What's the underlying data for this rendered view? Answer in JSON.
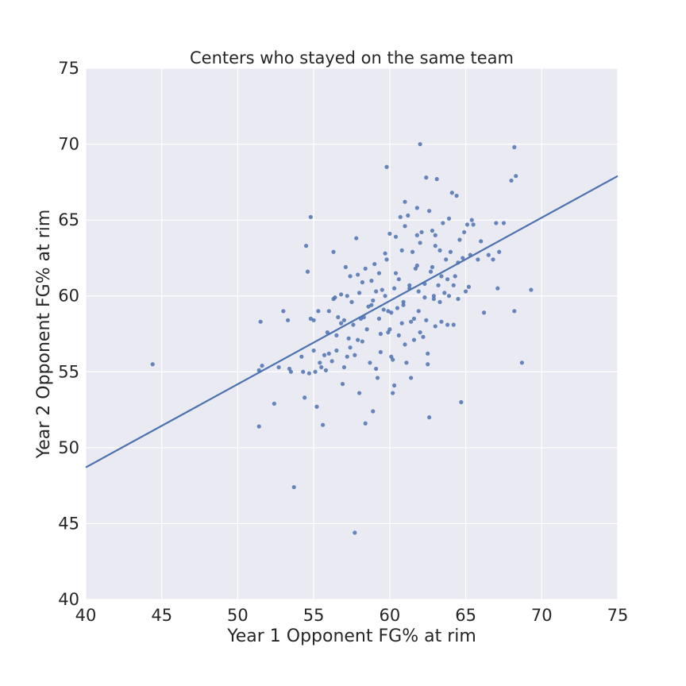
{
  "chart_data": {
    "type": "scatter",
    "title": "Centers who stayed on the same team",
    "xlabel": "Year 1 Opponent FG% at rim",
    "ylabel": "Year 2 Opponent FG% at rim",
    "xlim": [
      40,
      75
    ],
    "ylim": [
      40,
      75
    ],
    "xticks": [
      40,
      45,
      50,
      55,
      60,
      65,
      70,
      75
    ],
    "yticks": [
      40,
      45,
      50,
      55,
      60,
      65,
      70,
      75
    ],
    "grid": true,
    "background_color": "#eaeaf2",
    "point_color": "#4c72b0",
    "line_color": "#4c72b0",
    "regression_line": {
      "x": [
        40,
        75
      ],
      "y": [
        48.7,
        67.9
      ]
    },
    "points": [
      [
        44.4,
        55.5
      ],
      [
        51.4,
        51.4
      ],
      [
        51.5,
        58.3
      ],
      [
        51.4,
        55.1
      ],
      [
        51.6,
        55.4
      ],
      [
        52.4,
        52.9
      ],
      [
        52.7,
        55.3
      ],
      [
        53.0,
        59.0
      ],
      [
        53.3,
        58.4
      ],
      [
        53.4,
        55.2
      ],
      [
        53.5,
        55.0
      ],
      [
        53.7,
        47.4
      ],
      [
        54.2,
        56.0
      ],
      [
        54.3,
        55.0
      ],
      [
        54.4,
        53.3
      ],
      [
        54.5,
        63.3
      ],
      [
        54.6,
        61.6
      ],
      [
        54.7,
        54.9
      ],
      [
        54.8,
        65.2
      ],
      [
        54.8,
        58.5
      ],
      [
        55.0,
        58.4
      ],
      [
        55.0,
        56.4
      ],
      [
        55.1,
        55.0
      ],
      [
        55.2,
        52.7
      ],
      [
        55.3,
        59.0
      ],
      [
        55.4,
        55.6
      ],
      [
        55.5,
        55.3
      ],
      [
        55.6,
        51.5
      ],
      [
        55.7,
        56.1
      ],
      [
        55.8,
        55.1
      ],
      [
        56.0,
        56.2
      ],
      [
        56.2,
        55.7
      ],
      [
        56.3,
        62.9
      ],
      [
        56.3,
        59.8
      ],
      [
        56.4,
        59.9
      ],
      [
        56.5,
        56.4
      ],
      [
        56.6,
        58.6
      ],
      [
        56.8,
        58.2
      ],
      [
        56.9,
        54.2
      ],
      [
        57.0,
        55.3
      ],
      [
        57.1,
        61.9
      ],
      [
        57.2,
        60.0
      ],
      [
        57.3,
        57.2
      ],
      [
        57.4,
        56.6
      ],
      [
        57.5,
        59.6
      ],
      [
        57.6,
        58.1
      ],
      [
        57.7,
        44.4
      ],
      [
        57.8,
        63.8
      ],
      [
        57.7,
        56.1
      ],
      [
        57.9,
        57.1
      ],
      [
        58.0,
        53.6
      ],
      [
        58.1,
        58.5
      ],
      [
        58.2,
        60.9
      ],
      [
        58.3,
        58.6
      ],
      [
        58.4,
        51.6
      ],
      [
        58.5,
        57.8
      ],
      [
        58.6,
        59.3
      ],
      [
        58.7,
        55.6
      ],
      [
        58.8,
        59.4
      ],
      [
        58.9,
        52.4
      ],
      [
        59.0,
        62.1
      ],
      [
        59.1,
        60.3
      ],
      [
        59.2,
        54.6
      ],
      [
        59.3,
        58.5
      ],
      [
        59.4,
        56.3
      ],
      [
        59.5,
        60.4
      ],
      [
        59.6,
        59.1
      ],
      [
        59.7,
        62.8
      ],
      [
        59.8,
        68.5
      ],
      [
        59.9,
        57.6
      ],
      [
        60.0,
        64.1
      ],
      [
        60.1,
        58.9
      ],
      [
        60.2,
        55.8
      ],
      [
        60.3,
        54.1
      ],
      [
        60.2,
        53.6
      ],
      [
        60.4,
        61.5
      ],
      [
        60.5,
        59.2
      ],
      [
        60.6,
        57.4
      ],
      [
        60.7,
        65.2
      ],
      [
        60.8,
        63.0
      ],
      [
        60.9,
        59.6
      ],
      [
        61.0,
        66.2
      ],
      [
        61.1,
        55.6
      ],
      [
        61.2,
        65.3
      ],
      [
        61.3,
        60.5
      ],
      [
        61.4,
        58.3
      ],
      [
        61.5,
        62.9
      ],
      [
        61.6,
        57.1
      ],
      [
        61.7,
        61.8
      ],
      [
        61.8,
        64.0
      ],
      [
        61.9,
        59.0
      ],
      [
        62.0,
        70.0
      ],
      [
        62.1,
        64.2
      ],
      [
        62.2,
        57.3
      ],
      [
        62.3,
        60.8
      ],
      [
        62.4,
        67.8
      ],
      [
        62.5,
        56.2
      ],
      [
        62.6,
        52.0
      ],
      [
        62.7,
        61.6
      ],
      [
        62.8,
        64.3
      ],
      [
        62.9,
        59.8
      ],
      [
        63.0,
        63.3
      ],
      [
        63.1,
        67.7
      ],
      [
        63.2,
        60.7
      ],
      [
        63.3,
        63.0
      ],
      [
        63.4,
        58.3
      ],
      [
        63.5,
        64.8
      ],
      [
        63.6,
        60.2
      ],
      [
        63.7,
        62.4
      ],
      [
        63.8,
        58.1
      ],
      [
        63.9,
        65.1
      ],
      [
        64.0,
        62.9
      ],
      [
        64.1,
        66.8
      ],
      [
        64.2,
        58.1
      ],
      [
        64.3,
        61.3
      ],
      [
        64.4,
        66.6
      ],
      [
        64.5,
        62.2
      ],
      [
        64.6,
        63.7
      ],
      [
        64.7,
        53.0
      ],
      [
        64.8,
        62.5
      ],
      [
        64.9,
        64.2
      ],
      [
        65.0,
        60.3
      ],
      [
        65.1,
        64.7
      ],
      [
        65.2,
        60.6
      ],
      [
        65.3,
        62.7
      ],
      [
        65.4,
        65.0
      ],
      [
        65.5,
        64.7
      ],
      [
        65.8,
        62.4
      ],
      [
        66.0,
        63.6
      ],
      [
        66.2,
        58.9
      ],
      [
        66.5,
        62.7
      ],
      [
        66.8,
        62.4
      ],
      [
        67.0,
        64.8
      ],
      [
        67.1,
        60.5
      ],
      [
        67.2,
        62.9
      ],
      [
        67.5,
        64.8
      ],
      [
        68.0,
        67.6
      ],
      [
        68.2,
        69.8
      ],
      [
        68.3,
        67.9
      ],
      [
        68.2,
        59.0
      ],
      [
        68.7,
        55.6
      ],
      [
        69.3,
        60.4
      ],
      [
        62.5,
        55.5
      ],
      [
        61.4,
        54.6
      ],
      [
        59.4,
        57.5
      ],
      [
        58.2,
        57.0
      ],
      [
        57.2,
        56.0
      ],
      [
        56.5,
        57.4
      ],
      [
        60.0,
        57.8
      ],
      [
        61.0,
        56.8
      ],
      [
        62.0,
        57.6
      ],
      [
        63.0,
        58.0
      ],
      [
        58.8,
        61.0
      ],
      [
        59.8,
        62.4
      ],
      [
        60.6,
        61.1
      ],
      [
        61.8,
        62.0
      ],
      [
        62.8,
        61.9
      ],
      [
        63.8,
        61.1
      ],
      [
        64.2,
        60.7
      ],
      [
        57.9,
        61.4
      ],
      [
        58.4,
        61.8
      ],
      [
        59.3,
        61.5
      ],
      [
        60.3,
        60.5
      ],
      [
        61.3,
        60.7
      ],
      [
        62.3,
        59.9
      ],
      [
        63.3,
        59.6
      ],
      [
        62.0,
        63.5
      ],
      [
        61.0,
        64.6
      ],
      [
        63.0,
        64.0
      ],
      [
        61.8,
        65.8
      ],
      [
        62.6,
        65.6
      ],
      [
        60.4,
        63.9
      ],
      [
        59.7,
        60.0
      ],
      [
        58.9,
        59.7
      ],
      [
        58.0,
        60.2
      ],
      [
        57.4,
        61.3
      ],
      [
        56.8,
        60.1
      ],
      [
        55.9,
        57.6
      ],
      [
        56.0,
        59.0
      ],
      [
        57.0,
        58.4
      ],
      [
        60.8,
        58.2
      ],
      [
        61.6,
        58.5
      ],
      [
        62.4,
        58.4
      ],
      [
        63.4,
        61.3
      ],
      [
        64.5,
        59.8
      ],
      [
        59.1,
        55.2
      ],
      [
        60.1,
        56.0
      ],
      [
        59.9,
        59.0
      ],
      [
        60.9,
        59.4
      ],
      [
        61.9,
        60.3
      ],
      [
        62.9,
        60.0
      ],
      [
        63.9,
        60.0
      ]
    ]
  }
}
